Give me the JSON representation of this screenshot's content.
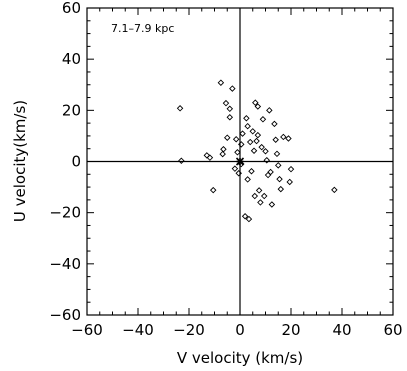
{
  "chart_data": {
    "type": "scatter",
    "title": "",
    "annotation": "7.1–7.9 kpc",
    "xlabel": "V velocity (km/s)",
    "ylabel": "U velocity(km/s)",
    "xlim": [
      -60,
      60
    ],
    "ylim": [
      -60,
      60
    ],
    "xticks": [
      -60,
      -40,
      -20,
      0,
      20,
      40,
      60
    ],
    "yticks": [
      -60,
      -40,
      -20,
      0,
      20,
      40,
      60
    ],
    "zero_lines": true,
    "grid": false,
    "marker": "diamond",
    "origin_marker": "star",
    "points": [
      {
        "x": -23.5,
        "y": 20.8
      },
      {
        "x": -23.0,
        "y": 0.3
      },
      {
        "x": -13.0,
        "y": 2.4
      },
      {
        "x": -11.8,
        "y": 1.5
      },
      {
        "x": -10.5,
        "y": -11.2
      },
      {
        "x": -7.5,
        "y": 30.8
      },
      {
        "x": -6.8,
        "y": 2.9
      },
      {
        "x": -6.5,
        "y": 4.8
      },
      {
        "x": -5.5,
        "y": 22.8
      },
      {
        "x": -5.0,
        "y": 9.3
      },
      {
        "x": -4.0,
        "y": 20.6
      },
      {
        "x": -4.0,
        "y": 17.3
      },
      {
        "x": -3.0,
        "y": 28.5
      },
      {
        "x": -2.0,
        "y": -2.8
      },
      {
        "x": -1.5,
        "y": 8.7
      },
      {
        "x": -1.0,
        "y": 3.6
      },
      {
        "x": -0.5,
        "y": -4.6
      },
      {
        "x": 0.5,
        "y": 6.7
      },
      {
        "x": 0.5,
        "y": -1.0
      },
      {
        "x": 1.0,
        "y": 10.9
      },
      {
        "x": 2.0,
        "y": -21.4
      },
      {
        "x": 2.5,
        "y": 16.9
      },
      {
        "x": 3.0,
        "y": 13.8
      },
      {
        "x": 3.0,
        "y": -7.0
      },
      {
        "x": 3.5,
        "y": -22.5
      },
      {
        "x": 4.0,
        "y": 7.6
      },
      {
        "x": 4.5,
        "y": -3.8
      },
      {
        "x": 5.0,
        "y": 11.8
      },
      {
        "x": 5.5,
        "y": 4.2
      },
      {
        "x": 5.8,
        "y": -13.5
      },
      {
        "x": 6.0,
        "y": 23.0
      },
      {
        "x": 6.5,
        "y": 8.0
      },
      {
        "x": 7.0,
        "y": 21.5
      },
      {
        "x": 7.0,
        "y": 10.3
      },
      {
        "x": 7.5,
        "y": -11.3
      },
      {
        "x": 8.0,
        "y": -16.0
      },
      {
        "x": 8.5,
        "y": 5.6
      },
      {
        "x": 9.0,
        "y": 16.5
      },
      {
        "x": 9.5,
        "y": -13.5
      },
      {
        "x": 10.0,
        "y": 4.0
      },
      {
        "x": 10.5,
        "y": 0.5
      },
      {
        "x": 11.0,
        "y": -5.3
      },
      {
        "x": 11.5,
        "y": 20.0
      },
      {
        "x": 12.0,
        "y": -4.1
      },
      {
        "x": 12.5,
        "y": -16.8
      },
      {
        "x": 13.5,
        "y": 14.7
      },
      {
        "x": 14.0,
        "y": 8.5
      },
      {
        "x": 14.5,
        "y": 3.0
      },
      {
        "x": 15.0,
        "y": -1.5
      },
      {
        "x": 15.5,
        "y": -6.9
      },
      {
        "x": 16.0,
        "y": -10.8
      },
      {
        "x": 17.0,
        "y": 9.6
      },
      {
        "x": 19.0,
        "y": 9.0
      },
      {
        "x": 19.5,
        "y": -8.0
      },
      {
        "x": 20.0,
        "y": -3.0
      },
      {
        "x": 37.0,
        "y": -11.1
      }
    ]
  }
}
